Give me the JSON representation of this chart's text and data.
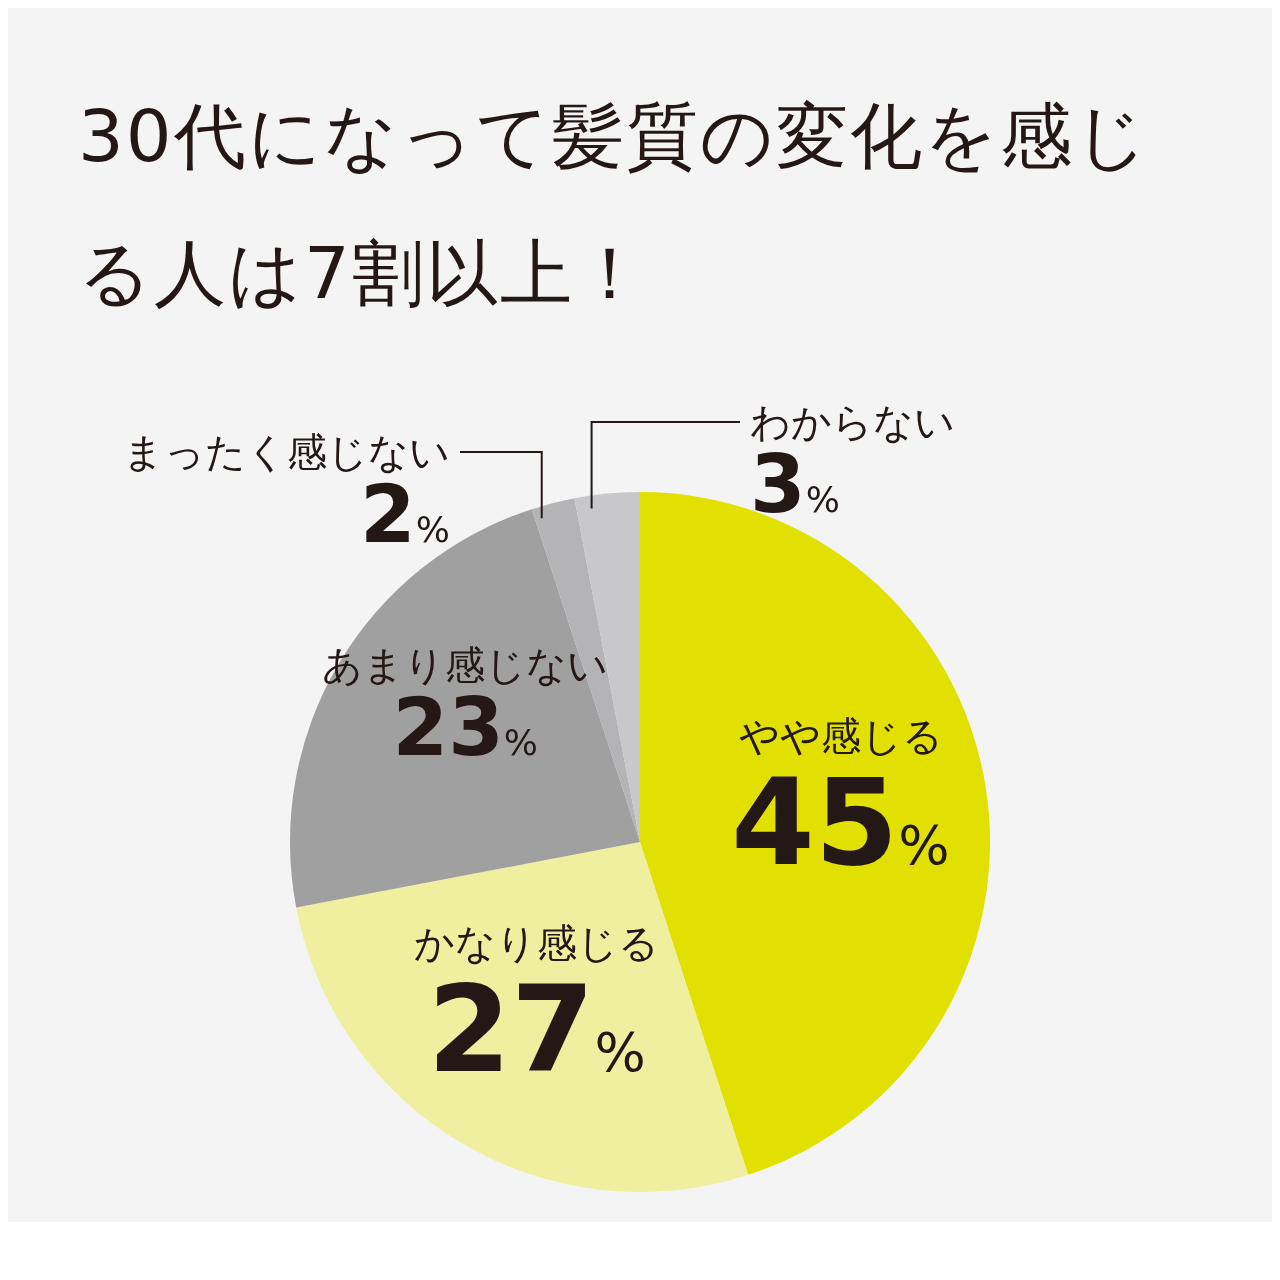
{
  "chart_data": {
    "type": "pie",
    "title": "30代になって髪質の変化を感じる人は7割以上！",
    "categories": [
      "やや感じる",
      "かなり感じる",
      "あまり感じない",
      "まったく感じない",
      "わからない"
    ],
    "values": [
      45,
      27,
      23,
      2,
      3
    ],
    "value_labels": [
      "45%",
      "27%",
      "23%",
      "2%",
      "3%"
    ],
    "colors": [
      "#e2e000",
      "#f0ee9f",
      "#a0a0a0",
      "#b4b4b6",
      "#c8c8ca"
    ]
  }
}
